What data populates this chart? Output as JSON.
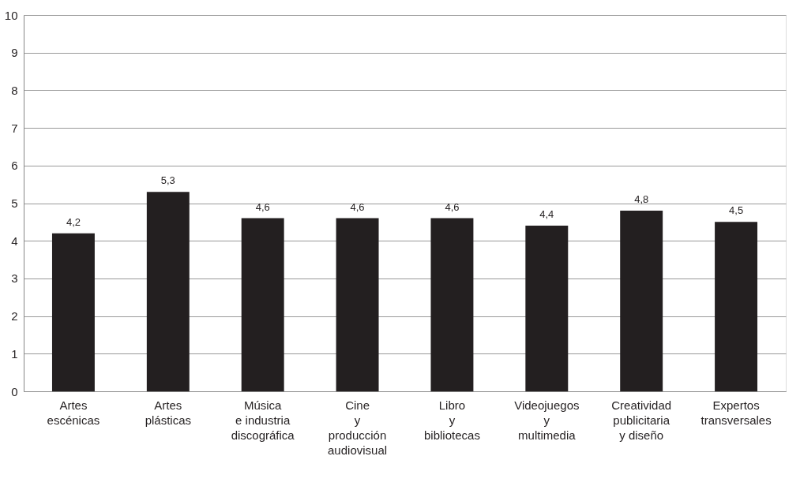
{
  "chart_data": {
    "type": "bar",
    "categories": [
      "Artes\nescénicas",
      "Artes\nplásticas",
      "Música\ne industria\ndiscográfica",
      "Cine\ny\nproducción\naudiovisual",
      "Libro\ny\nbibliotecas",
      "Videojuegos\ny\nmultimedia",
      "Creatividad\npublicitaria\ny diseño",
      "Expertos\ntransversales"
    ],
    "values": [
      4.2,
      5.3,
      4.6,
      4.6,
      4.6,
      4.4,
      4.8,
      4.5
    ],
    "value_labels": [
      "4,2",
      "5,3",
      "4,6",
      "4,6",
      "4,6",
      "4,4",
      "4,8",
      "4,5"
    ],
    "color": "#231f20",
    "ylim": [
      0,
      10
    ],
    "yticks": [
      0,
      1,
      2,
      3,
      4,
      5,
      6,
      7,
      8,
      9,
      10
    ],
    "grid": "y"
  }
}
